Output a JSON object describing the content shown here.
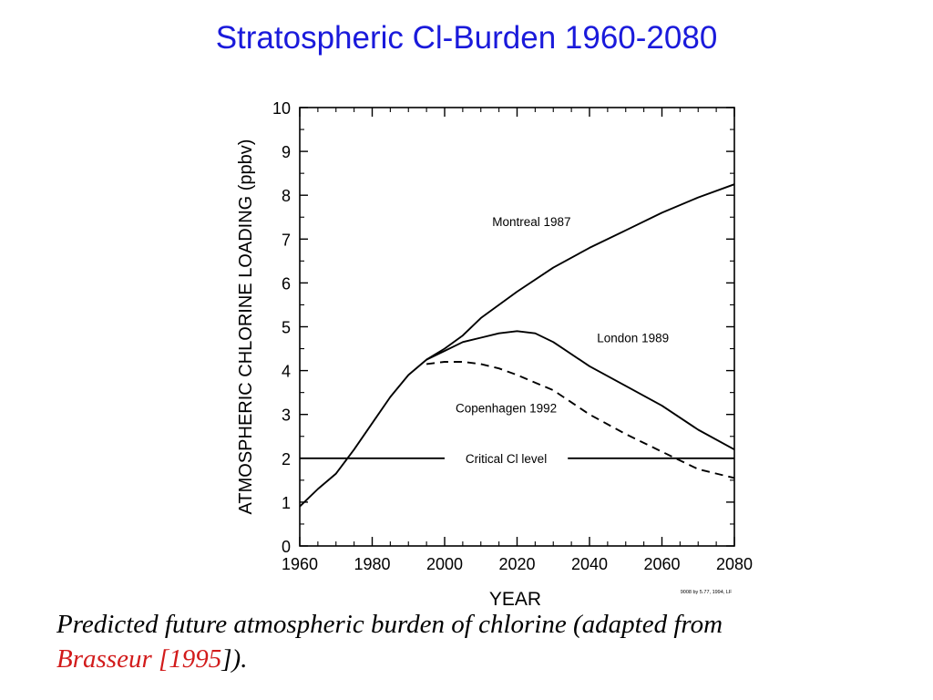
{
  "slide": {
    "title": "Stratospheric Cl-Burden 1960-2080",
    "caption_text": "Predicted future atmospheric burden of chlorine (adapted from",
    "caption_ref": "Brasseur [1995",
    "caption_end": "]).",
    "credit_mark": "9008 by 5.77, 1994, LF"
  },
  "colors": {
    "title": "#1a1adb",
    "reference": "#d21b1b",
    "plot": "#000000"
  },
  "chart_data": {
    "type": "line",
    "xlabel": "YEAR",
    "ylabel": "ATMOSPHERIC CHLORINE LOADING (ppbv)",
    "xlim": [
      1960,
      2080
    ],
    "ylim": [
      0,
      10
    ],
    "x_ticks": [
      1960,
      1980,
      2000,
      2020,
      2040,
      2060,
      2080
    ],
    "y_ticks": [
      0,
      1,
      2,
      3,
      4,
      5,
      6,
      7,
      8,
      9,
      10
    ],
    "grid": false,
    "series": [
      {
        "name": "Montreal 1987",
        "style": "solid",
        "points": [
          [
            1960,
            0.9
          ],
          [
            1965,
            1.3
          ],
          [
            1970,
            1.65
          ],
          [
            1975,
            2.2
          ],
          [
            1980,
            2.8
          ],
          [
            1985,
            3.4
          ],
          [
            1990,
            3.9
          ],
          [
            1995,
            4.25
          ],
          [
            2000,
            4.5
          ],
          [
            2005,
            4.8
          ],
          [
            2010,
            5.2
          ],
          [
            2020,
            5.8
          ],
          [
            2030,
            6.35
          ],
          [
            2040,
            6.8
          ],
          [
            2050,
            7.2
          ],
          [
            2060,
            7.6
          ],
          [
            2070,
            7.95
          ],
          [
            2080,
            8.25
          ]
        ]
      },
      {
        "name": "London 1989",
        "style": "solid",
        "points": [
          [
            1995,
            4.25
          ],
          [
            2000,
            4.45
          ],
          [
            2005,
            4.65
          ],
          [
            2010,
            4.75
          ],
          [
            2015,
            4.85
          ],
          [
            2020,
            4.9
          ],
          [
            2025,
            4.85
          ],
          [
            2030,
            4.65
          ],
          [
            2040,
            4.1
          ],
          [
            2050,
            3.65
          ],
          [
            2060,
            3.2
          ],
          [
            2070,
            2.65
          ],
          [
            2080,
            2.2
          ]
        ]
      },
      {
        "name": "Copenhagen 1992",
        "style": "dashed",
        "points": [
          [
            1995,
            4.15
          ],
          [
            2000,
            4.2
          ],
          [
            2005,
            4.2
          ],
          [
            2010,
            4.15
          ],
          [
            2015,
            4.05
          ],
          [
            2020,
            3.9
          ],
          [
            2030,
            3.55
          ],
          [
            2040,
            3.0
          ],
          [
            2050,
            2.55
          ],
          [
            2060,
            2.15
          ],
          [
            2070,
            1.75
          ],
          [
            2080,
            1.55
          ]
        ]
      },
      {
        "name": "Critical Cl level",
        "style": "solid",
        "points": [
          [
            1960,
            2.0
          ],
          [
            2080,
            2.0
          ]
        ]
      }
    ],
    "annotations": [
      {
        "text": "Montreal 1987",
        "x": 2024,
        "y": 7.4
      },
      {
        "text": "London 1989",
        "x": 2052,
        "y": 4.75
      },
      {
        "text": "Copenhagen 1992",
        "x": 2017,
        "y": 3.15
      },
      {
        "text": "Critical Cl level",
        "x": 2017,
        "y": 2.0
      }
    ]
  }
}
